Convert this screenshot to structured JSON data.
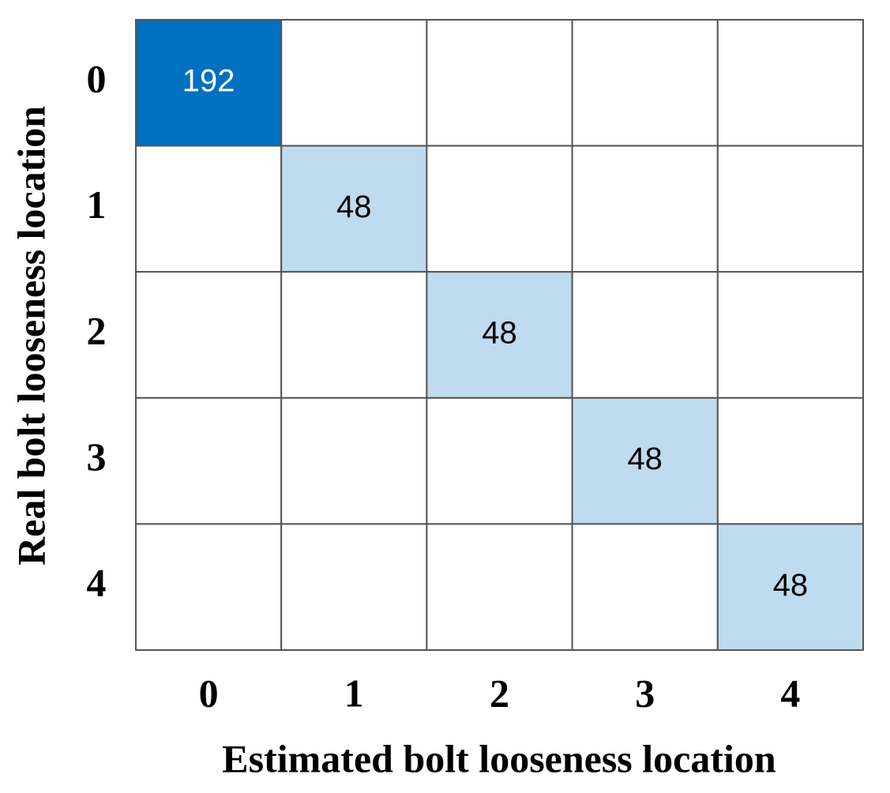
{
  "chart_data": {
    "type": "heatmap",
    "xlabel": "Estimated  bolt  looseness location",
    "ylabel": "Real bolt  looseness location",
    "x_categories": [
      "0",
      "1",
      "2",
      "3",
      "4"
    ],
    "y_categories": [
      "0",
      "1",
      "2",
      "3",
      "4"
    ],
    "values": [
      [
        192,
        null,
        null,
        null,
        null
      ],
      [
        null,
        48,
        null,
        null,
        null
      ],
      [
        null,
        null,
        48,
        null,
        null
      ],
      [
        null,
        null,
        null,
        48,
        null
      ],
      [
        null,
        null,
        null,
        null,
        48
      ]
    ],
    "color_min": "#ffffff",
    "color_max": "#0070c0"
  }
}
